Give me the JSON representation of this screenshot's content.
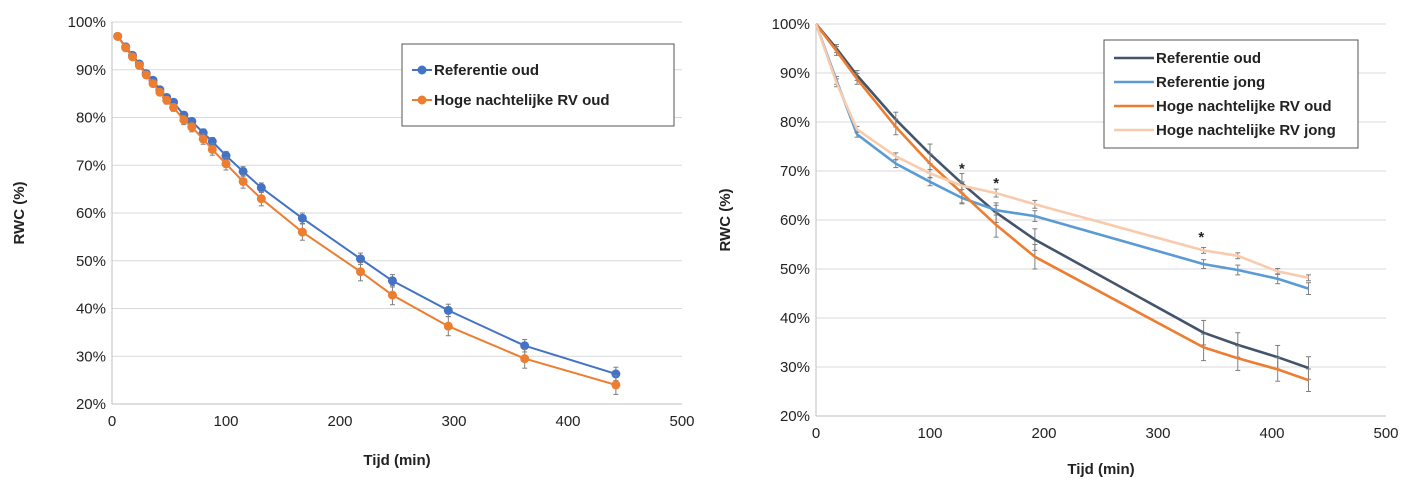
{
  "chart_data": [
    {
      "type": "line",
      "xlabel": "Tijd (min)",
      "ylabel": "RWC (%)",
      "xlim": [
        0,
        500
      ],
      "ylim": [
        20,
        100
      ],
      "xticks": [
        0,
        100,
        200,
        300,
        400,
        500
      ],
      "yticks": [
        20,
        30,
        40,
        50,
        60,
        70,
        80,
        90,
        100
      ],
      "ytick_suffix": "%",
      "grid": "horizontal",
      "legend": "top-right",
      "markers": true,
      "series": [
        {
          "name": "Referentie oud",
          "color": "#4472c4",
          "x": [
            5,
            12,
            18,
            24,
            30,
            36,
            42,
            48,
            54,
            63,
            70,
            80,
            88,
            100,
            115,
            131,
            167,
            218,
            246,
            295,
            362,
            442
          ],
          "y": [
            97,
            94.8,
            93,
            91.2,
            89.2,
            87.8,
            85.8,
            84.2,
            83.2,
            80.5,
            79.2,
            76.8,
            75,
            72,
            68.7,
            65.3,
            58.9,
            50.4,
            45.8,
            39.6,
            32.2,
            26.3
          ],
          "err": [
            0.3,
            0.4,
            0.4,
            0.4,
            0.5,
            0.5,
            0.5,
            0.6,
            0.6,
            0.7,
            0.7,
            0.8,
            0.8,
            0.9,
            1.0,
            1.0,
            1.1,
            1.2,
            1.3,
            1.3,
            1.3,
            1.4
          ]
        },
        {
          "name": "Hoge nachtelijke RV oud",
          "color": "#ed7d31",
          "x": [
            5,
            12,
            18,
            24,
            30,
            36,
            42,
            48,
            54,
            63,
            70,
            80,
            88,
            100,
            115,
            131,
            167,
            218,
            246,
            295,
            362,
            442
          ],
          "y": [
            97,
            94.6,
            92.7,
            90.9,
            88.9,
            87.1,
            85.3,
            83.6,
            82.1,
            79.5,
            78,
            75.5,
            73.3,
            70.3,
            66.6,
            63,
            56,
            47.7,
            42.8,
            36.3,
            29.5,
            24
          ],
          "err": [
            0.3,
            0.4,
            0.5,
            0.5,
            0.6,
            0.7,
            0.7,
            0.8,
            0.8,
            1.0,
            1.0,
            1.1,
            1.2,
            1.3,
            1.4,
            1.5,
            1.7,
            1.9,
            2.0,
            2.0,
            2.0,
            2.0
          ]
        }
      ]
    },
    {
      "type": "line",
      "xlabel": "Tijd (min)",
      "ylabel": "RWC (%)",
      "xlim": [
        0,
        500
      ],
      "ylim": [
        20,
        100
      ],
      "xticks": [
        0,
        100,
        200,
        300,
        400,
        500
      ],
      "yticks": [
        20,
        30,
        40,
        50,
        60,
        70,
        80,
        90,
        100
      ],
      "ytick_suffix": "%",
      "grid": "horizontal",
      "legend": "top-right",
      "markers": false,
      "annotations": [
        {
          "text": "*",
          "x": 128,
          "y": 69.5
        },
        {
          "text": "*",
          "x": 158,
          "y": 66.5
        },
        {
          "text": "*",
          "x": 338,
          "y": 55.5
        }
      ],
      "series": [
        {
          "name": "Referentie oud",
          "color": "#44546a",
          "x": [
            0,
            18,
            36,
            70,
            100,
            128,
            158,
            192,
            340,
            370,
            405,
            432
          ],
          "y": [
            100,
            95,
            89.5,
            80.5,
            73.5,
            67.5,
            61.5,
            56,
            37,
            34.5,
            32,
            29.8
          ],
          "err": [
            0,
            0.8,
            1.0,
            1.5,
            2.0,
            2.0,
            2.0,
            2.2,
            2.5,
            2.5,
            2.4,
            2.3
          ]
        },
        {
          "name": "Referentie jong",
          "color": "#5b9bd5",
          "x": [
            0,
            18,
            36,
            70,
            100,
            128,
            158,
            192,
            340,
            370,
            405,
            432
          ],
          "y": [
            100,
            88.5,
            77.5,
            71.5,
            67.8,
            64.5,
            62,
            60.8,
            51,
            49.8,
            48,
            46
          ],
          "err": [
            0,
            0.8,
            0.6,
            0.8,
            0.8,
            1.0,
            1.0,
            1.1,
            0.9,
            1.0,
            1.0,
            1.2
          ]
        },
        {
          "name": "Hoge nachtelijke RV oud",
          "color": "#ed7d31",
          "x": [
            0,
            18,
            36,
            70,
            100,
            128,
            158,
            192,
            340,
            370,
            405,
            432
          ],
          "y": [
            100,
            94.5,
            88.8,
            79,
            71.5,
            65.5,
            59,
            52.5,
            34,
            31.8,
            29.5,
            27.3
          ],
          "err": [
            0,
            0.9,
            1.1,
            1.6,
            2.0,
            2.2,
            2.5,
            2.5,
            2.7,
            2.5,
            2.4,
            2.3
          ]
        },
        {
          "name": "Hoge nachtelijke RV jong",
          "color": "#f8cbad",
          "x": [
            0,
            18,
            36,
            70,
            100,
            128,
            158,
            192,
            340,
            370,
            405,
            432
          ],
          "y": [
            100,
            88,
            78.5,
            73,
            69.5,
            67,
            65.5,
            63.2,
            53.8,
            52.7,
            49.5,
            48.2
          ],
          "err": [
            0,
            0.8,
            0.6,
            0.7,
            0.8,
            0.8,
            0.8,
            0.8,
            0.6,
            0.6,
            0.6,
            0.6
          ]
        }
      ]
    }
  ]
}
